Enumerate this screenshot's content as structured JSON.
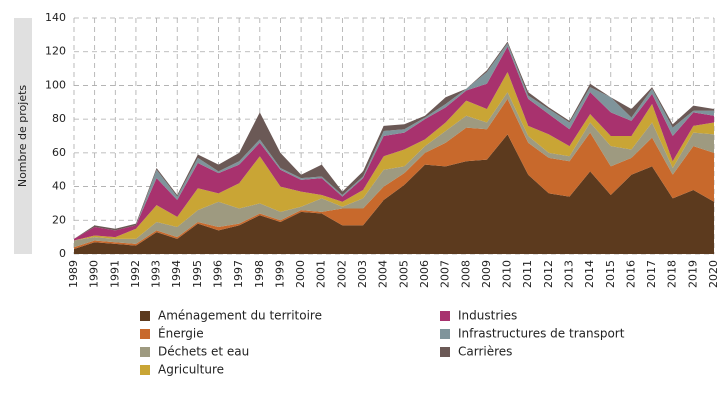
{
  "chart_data": {
    "type": "stacked_area",
    "y_label": "Nombre de projets",
    "categories": [
      "1989",
      "1990",
      "1991",
      "1992",
      "1993",
      "1994",
      "1995",
      "1996",
      "1997",
      "1998",
      "1999",
      "2000",
      "2001",
      "2002",
      "2003",
      "2004",
      "2005",
      "2006",
      "2007",
      "2008",
      "2009",
      "2010",
      "2011",
      "2012",
      "2013",
      "2014",
      "2015",
      "2016",
      "2017",
      "2018",
      "2019",
      "2020"
    ],
    "ylim": [
      0,
      140
    ],
    "yticks": [
      0,
      20,
      40,
      60,
      80,
      100,
      120,
      140
    ],
    "grid": true,
    "series": [
      {
        "name": "Aménagement du territoire",
        "color": "#5c3a1e",
        "values": [
          3,
          7,
          6,
          5,
          13,
          9,
          18,
          14,
          17,
          23,
          19,
          25,
          24,
          17,
          17,
          32,
          41,
          53,
          52,
          55,
          56,
          71,
          47,
          36,
          34,
          49,
          35,
          47,
          52,
          33,
          38,
          31
        ]
      },
      {
        "name": "Énergie",
        "color": "#c8692c",
        "values": [
          1,
          1,
          1,
          1,
          1,
          1,
          1,
          2,
          1,
          1,
          1,
          1,
          1,
          10,
          10,
          8,
          7,
          7,
          14,
          20,
          18,
          21,
          19,
          21,
          21,
          23,
          17,
          10,
          17,
          14,
          26,
          29
        ]
      },
      {
        "name": "Déchets et eau",
        "color": "#9e9a80",
        "values": [
          4,
          2,
          2,
          3,
          5,
          6,
          7,
          15,
          9,
          6,
          5,
          2,
          8,
          1,
          6,
          10,
          4,
          4,
          7,
          7,
          4,
          4,
          4,
          3,
          3,
          6,
          12,
          5,
          9,
          4,
          8,
          11
        ]
      },
      {
        "name": "Agriculture",
        "color": "#c9a535",
        "values": [
          0,
          1,
          1,
          6,
          10,
          6,
          13,
          5,
          15,
          28,
          15,
          9,
          2,
          3,
          5,
          8,
          10,
          4,
          5,
          9,
          8,
          12,
          6,
          11,
          6,
          5,
          6,
          8,
          11,
          4,
          4,
          7
        ]
      },
      {
        "name": "Industries",
        "color": "#a8326e",
        "values": [
          1,
          5,
          4,
          2,
          16,
          10,
          15,
          12,
          11,
          8,
          10,
          7,
          10,
          3,
          7,
          12,
          10,
          12,
          9,
          6,
          15,
          15,
          16,
          12,
          10,
          13,
          14,
          9,
          6,
          15,
          8,
          4
        ]
      },
      {
        "name": "Infrastructures de transport",
        "color": "#7f949b",
        "values": [
          0,
          0,
          0,
          0,
          5,
          2,
          3,
          1,
          2,
          2,
          1,
          1,
          1,
          1,
          1,
          3,
          2,
          1,
          2,
          1,
          7,
          2,
          2,
          3,
          4,
          3,
          9,
          2,
          3,
          5,
          1,
          3
        ]
      },
      {
        "name": "Carrières",
        "color": "#6b5956",
        "values": [
          0,
          1,
          1,
          1,
          1,
          1,
          2,
          4,
          5,
          16,
          9,
          2,
          7,
          2,
          3,
          3,
          3,
          1,
          4,
          0,
          1,
          1,
          2,
          1,
          1,
          2,
          0,
          5,
          1,
          2,
          3,
          1
        ]
      }
    ]
  }
}
